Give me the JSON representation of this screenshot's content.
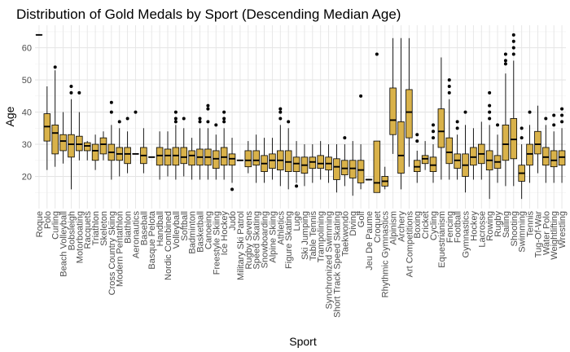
{
  "chart_data": {
    "type": "boxplot",
    "title": "Distribution of Gold Medals by Sport (Descending Median Age)",
    "xlabel": "Sport",
    "ylabel": "Age",
    "yticks": [
      20,
      30,
      40,
      50,
      60
    ],
    "ylim": [
      10,
      67
    ],
    "grid": true,
    "legend": "none",
    "colors": {
      "box_fill": "#d9b24a",
      "box_stroke": "#000000",
      "grid_major": "#e5e5e5",
      "grid_minor": "#f2f2f2",
      "background": "#ffffff"
    },
    "boxes": [
      {
        "sport": "Roque",
        "min": 64,
        "q1": 64,
        "median": 64,
        "q3": 64,
        "max": 64,
        "outliers": []
      },
      {
        "sport": "Polo",
        "min": 22,
        "q1": 31,
        "median": 35.5,
        "q3": 39.5,
        "max": 48,
        "outliers": []
      },
      {
        "sport": "Curling",
        "min": 23,
        "q1": 27,
        "median": 33.5,
        "q3": 36,
        "max": 53,
        "outliers": [
          54
        ]
      },
      {
        "sport": "Beach Volleyball",
        "min": 24,
        "q1": 28,
        "median": 31,
        "q3": 33,
        "max": 40,
        "outliers": []
      },
      {
        "sport": "Bobsleigh",
        "min": 16,
        "q1": 26,
        "median": 30,
        "q3": 33,
        "max": 44,
        "outliers": [
          46,
          48
        ]
      },
      {
        "sport": "Motorboating",
        "min": 25,
        "q1": 28,
        "median": 30,
        "q3": 32.5,
        "max": 40,
        "outliers": [
          46
        ]
      },
      {
        "sport": "Racquets",
        "min": 25,
        "q1": 28,
        "median": 29.5,
        "q3": 30.5,
        "max": 31,
        "outliers": []
      },
      {
        "sport": "Triathlon",
        "min": 22,
        "q1": 25,
        "median": 28,
        "q3": 30,
        "max": 33,
        "outliers": []
      },
      {
        "sport": "Skeleton",
        "min": 25,
        "q1": 27,
        "median": 30,
        "q3": 32,
        "max": 34,
        "outliers": []
      },
      {
        "sport": "Cross Country Skiing",
        "min": 19,
        "q1": 25,
        "median": 27.5,
        "q3": 30,
        "max": 36,
        "outliers": [
          40,
          43
        ]
      },
      {
        "sport": "Modern Pentathlon",
        "min": 20,
        "q1": 25,
        "median": 27,
        "q3": 29,
        "max": 35,
        "outliers": [
          37
        ]
      },
      {
        "sport": "Biathlon",
        "min": 21,
        "q1": 24,
        "median": 27,
        "q3": 29,
        "max": 34,
        "outliers": [
          38
        ]
      },
      {
        "sport": "Aeronautics",
        "min": 27,
        "q1": 27,
        "median": 27,
        "q3": 27,
        "max": 27,
        "outliers": [
          40
        ]
      },
      {
        "sport": "Baseball",
        "min": 21,
        "q1": 24,
        "median": 26.5,
        "q3": 29,
        "max": 35,
        "outliers": []
      },
      {
        "sport": "Basque Pelota",
        "min": 26,
        "q1": 26,
        "median": 26,
        "q3": 26,
        "max": 26,
        "outliers": []
      },
      {
        "sport": "Handball",
        "min": 19,
        "q1": 23.5,
        "median": 26.5,
        "q3": 29,
        "max": 34,
        "outliers": []
      },
      {
        "sport": "Nordic Combined",
        "min": 20,
        "q1": 23.5,
        "median": 26.5,
        "q3": 28.5,
        "max": 34,
        "outliers": []
      },
      {
        "sport": "Volleyball",
        "min": 19,
        "q1": 23.5,
        "median": 26.5,
        "q3": 29,
        "max": 36,
        "outliers": [
          37,
          38,
          40
        ]
      },
      {
        "sport": "Softball",
        "min": 20,
        "q1": 24,
        "median": 26,
        "q3": 29,
        "max": 35,
        "outliers": [
          38
        ]
      },
      {
        "sport": "Badminton",
        "min": 19,
        "q1": 23.5,
        "median": 26.5,
        "q3": 28,
        "max": 32,
        "outliers": []
      },
      {
        "sport": "Basketball",
        "min": 19,
        "q1": 23.5,
        "median": 26,
        "q3": 28.5,
        "max": 35,
        "outliers": [
          37,
          38
        ]
      },
      {
        "sport": "Canoeing",
        "min": 19,
        "q1": 23.5,
        "median": 26,
        "q3": 28.5,
        "max": 35,
        "outliers": [
          37,
          41,
          42
        ]
      },
      {
        "sport": "Freestyle Skiing",
        "min": 19,
        "q1": 22.5,
        "median": 25.5,
        "q3": 28,
        "max": 33,
        "outliers": [
          36
        ]
      },
      {
        "sport": "Ice Hockey",
        "min": 19,
        "q1": 23.5,
        "median": 26,
        "q3": 29,
        "max": 35,
        "outliers": [
          37,
          38,
          40
        ]
      },
      {
        "sport": "Judo",
        "min": 18,
        "q1": 23.5,
        "median": 25.5,
        "q3": 27,
        "max": 32,
        "outliers": [
          16
        ]
      },
      {
        "sport": "Military Ski Patrol",
        "min": 25,
        "q1": 25,
        "median": 25,
        "q3": 25,
        "max": 25,
        "outliers": []
      },
      {
        "sport": "Rugby Sevens",
        "min": 21,
        "q1": 23,
        "median": 25,
        "q3": 28,
        "max": 31,
        "outliers": []
      },
      {
        "sport": "Speed Skating",
        "min": 18,
        "q1": 23.5,
        "median": 25,
        "q3": 28,
        "max": 33,
        "outliers": []
      },
      {
        "sport": "Snowboarding",
        "min": 18,
        "q1": 21.5,
        "median": 24,
        "q3": 26.5,
        "max": 32,
        "outliers": []
      },
      {
        "sport": "Alpine Skiing",
        "min": 19,
        "q1": 22.5,
        "median": 25,
        "q3": 27,
        "max": 32,
        "outliers": []
      },
      {
        "sport": "Athletics",
        "min": 17,
        "q1": 22,
        "median": 25,
        "q3": 28,
        "max": 36,
        "outliers": [
          38,
          40,
          41
        ]
      },
      {
        "sport": "Figure Skating",
        "min": 16,
        "q1": 21.5,
        "median": 24.5,
        "q3": 28,
        "max": 35,
        "outliers": [
          37
        ]
      },
      {
        "sport": "Luge",
        "min": 18,
        "q1": 21.5,
        "median": 24,
        "q3": 26,
        "max": 31,
        "outliers": [
          17
        ]
      },
      {
        "sport": "Ski Jumping",
        "min": 17,
        "q1": 21,
        "median": 23.5,
        "q3": 26,
        "max": 30,
        "outliers": []
      },
      {
        "sport": "Table Tennis",
        "min": 18,
        "q1": 22.5,
        "median": 24.5,
        "q3": 26,
        "max": 30,
        "outliers": []
      },
      {
        "sport": "Trampolining",
        "min": 19,
        "q1": 22.5,
        "median": 24,
        "q3": 26.5,
        "max": 31,
        "outliers": []
      },
      {
        "sport": "Synchronized Swimming",
        "min": 18,
        "q1": 22,
        "median": 24,
        "q3": 26,
        "max": 30,
        "outliers": []
      },
      {
        "sport": "Short Track Speed Skating",
        "min": 15,
        "q1": 19,
        "median": 23,
        "q3": 25.5,
        "max": 30,
        "outliers": []
      },
      {
        "sport": "Taekwondo",
        "min": 17,
        "q1": 20.5,
        "median": 22.5,
        "q3": 25,
        "max": 30,
        "outliers": [
          32
        ]
      },
      {
        "sport": "Diving",
        "min": 14,
        "q1": 19.5,
        "median": 22.5,
        "q3": 25,
        "max": 31,
        "outliers": []
      },
      {
        "sport": "Golf",
        "min": 16,
        "q1": 18,
        "median": 22,
        "q3": 25,
        "max": 30,
        "outliers": [
          45
        ]
      },
      {
        "sport": "Jeu De Paume",
        "min": 19,
        "q1": 19,
        "median": 19,
        "q3": 19,
        "max": 19,
        "outliers": []
      },
      {
        "sport": "Croquet",
        "min": 15,
        "q1": 15,
        "median": 18,
        "q3": 31,
        "max": 31,
        "outliers": [
          58
        ]
      },
      {
        "sport": "Rhythmic Gymnastics",
        "min": 16,
        "q1": 17,
        "median": 18.5,
        "q3": 20,
        "max": 23,
        "outliers": []
      },
      {
        "sport": "Alpinism",
        "min": 27,
        "q1": 33,
        "median": 37.5,
        "q3": 47.5,
        "max": 63,
        "outliers": []
      },
      {
        "sport": "Archery",
        "min": 16,
        "q1": 21,
        "median": 26.5,
        "q3": 37,
        "max": 63,
        "outliers": []
      },
      {
        "sport": "Art Competitions",
        "min": 23,
        "q1": 32,
        "median": 40,
        "q3": 47,
        "max": 63,
        "outliers": []
      },
      {
        "sport": "Boxing",
        "min": 18,
        "q1": 21.5,
        "median": 23,
        "q3": 25,
        "max": 28,
        "outliers": [
          31,
          33
        ]
      },
      {
        "sport": "Cricket",
        "min": 22,
        "q1": 24,
        "median": 25.5,
        "q3": 26.5,
        "max": 31,
        "outliers": []
      },
      {
        "sport": "Cycling",
        "min": 18,
        "q1": 21.5,
        "median": 23.5,
        "q3": 26,
        "max": 30,
        "outliers": [
          32,
          34,
          36
        ]
      },
      {
        "sport": "Equestrianism",
        "min": 19,
        "q1": 29,
        "median": 34,
        "q3": 41,
        "max": 57,
        "outliers": []
      },
      {
        "sport": "Fencing",
        "min": 19,
        "q1": 24,
        "median": 27.5,
        "q3": 32,
        "max": 44,
        "outliers": [
          46,
          48,
          50
        ]
      },
      {
        "sport": "Football",
        "min": 19,
        "q1": 22.5,
        "median": 25,
        "q3": 27,
        "max": 33,
        "outliers": [
          35,
          37
        ]
      },
      {
        "sport": "Gymnastics",
        "min": 15,
        "q1": 20,
        "median": 23.5,
        "q3": 27,
        "max": 36,
        "outliers": [
          40
        ]
      },
      {
        "sport": "Hockey",
        "min": 19,
        "q1": 23.5,
        "median": 26,
        "q3": 29,
        "max": 35,
        "outliers": []
      },
      {
        "sport": "Lacrosse",
        "min": 19,
        "q1": 24,
        "median": 27,
        "q3": 30,
        "max": 37,
        "outliers": []
      },
      {
        "sport": "Rowing",
        "min": 13,
        "q1": 22,
        "median": 25,
        "q3": 28,
        "max": 36,
        "outliers": [
          38,
          40,
          42,
          46
        ]
      },
      {
        "sport": "Rugby",
        "min": 18,
        "q1": 22.5,
        "median": 24.5,
        "q3": 26.5,
        "max": 33,
        "outliers": [
          36
        ]
      },
      {
        "sport": "Sailing",
        "min": 17,
        "q1": 25,
        "median": 30,
        "q3": 36,
        "max": 52,
        "outliers": [
          55,
          56,
          58
        ]
      },
      {
        "sport": "Shooting",
        "min": 17,
        "q1": 25.5,
        "median": 31.5,
        "q3": 38,
        "max": 56,
        "outliers": [
          58,
          60,
          62,
          64
        ]
      },
      {
        "sport": "Swimming",
        "min": 13,
        "q1": 18.5,
        "median": 21,
        "q3": 23.5,
        "max": 30,
        "outliers": [
          32,
          35
        ]
      },
      {
        "sport": "Tennis",
        "min": 18,
        "q1": 23.5,
        "median": 27,
        "q3": 30,
        "max": 36,
        "outliers": [
          40
        ]
      },
      {
        "sport": "Tug-Of-War",
        "min": 21,
        "q1": 27,
        "median": 30,
        "q3": 34,
        "max": 42,
        "outliers": []
      },
      {
        "sport": "Water Polo",
        "min": 18,
        "q1": 23.5,
        "median": 26,
        "q3": 29,
        "max": 36,
        "outliers": [
          38
        ]
      },
      {
        "sport": "Weightlifting",
        "min": 18,
        "q1": 23,
        "median": 25,
        "q3": 28,
        "max": 34,
        "outliers": [
          36,
          39
        ]
      },
      {
        "sport": "Wrestling",
        "min": 18,
        "q1": 23.5,
        "median": 26,
        "q3": 28,
        "max": 35,
        "outliers": [
          37,
          39,
          41
        ]
      }
    ]
  }
}
